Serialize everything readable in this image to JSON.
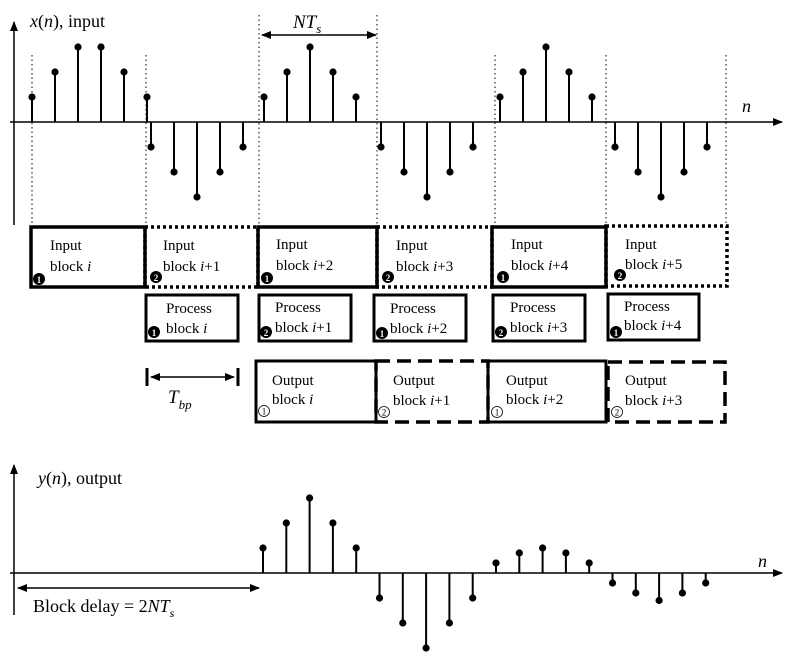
{
  "top_plot": {
    "label_main": "x",
    "label_var": "n",
    "label_suffix": ", input",
    "axis_var": "n",
    "span_label_main": "NT",
    "span_label_sub": "s",
    "samples": [
      [
        1,
        2,
        3,
        3,
        2,
        1
      ],
      [
        -1,
        -2,
        -3,
        -2,
        -1
      ],
      [
        1,
        2,
        3,
        2,
        1
      ],
      [
        -1,
        -2,
        -3,
        -2,
        -1
      ],
      [
        1,
        2,
        3,
        2,
        1
      ],
      [
        -1,
        -2,
        -3,
        -2,
        -1
      ]
    ]
  },
  "input_blocks": [
    {
      "line1": "Input",
      "line2_text": "block ",
      "line2_var": "i",
      "line2_suffix": "",
      "badge": "1"
    },
    {
      "line1": "Input",
      "line2_text": "block ",
      "line2_var": "i",
      "line2_suffix": "+1",
      "badge": "2"
    },
    {
      "line1": "Input",
      "line2_text": "block ",
      "line2_var": "i",
      "line2_suffix": "+2",
      "badge": "1"
    },
    {
      "line1": "Input",
      "line2_text": "block ",
      "line2_var": "i",
      "line2_suffix": "+3",
      "badge": "2"
    },
    {
      "line1": "Input",
      "line2_text": "block ",
      "line2_var": "i",
      "line2_suffix": "+4",
      "badge": "1"
    },
    {
      "line1": "Input",
      "line2_text": "block ",
      "line2_var": "i",
      "line2_suffix": "+5",
      "badge": "2"
    }
  ],
  "process_blocks": [
    {
      "line1": "Process",
      "line2_text": "block ",
      "line2_var": "i",
      "line2_suffix": "",
      "badge": "1"
    },
    {
      "line1": "Process",
      "line2_text": "block ",
      "line2_var": "i",
      "line2_suffix": "+1",
      "badge": "2"
    },
    {
      "line1": "Process",
      "line2_text": "block ",
      "line2_var": "i",
      "line2_suffix": "+2",
      "badge": "1"
    },
    {
      "line1": "Process",
      "line2_text": "block ",
      "line2_var": "i",
      "line2_suffix": "+3",
      "badge": "2"
    },
    {
      "line1": "Process",
      "line2_text": "block ",
      "line2_var": "i",
      "line2_suffix": "+4",
      "badge": "1"
    }
  ],
  "output_blocks": [
    {
      "line1": "Output",
      "line2_text": "block ",
      "line2_var": "i",
      "line2_suffix": "",
      "badge": "1"
    },
    {
      "line1": "Output",
      "line2_text": "block ",
      "line2_var": "i",
      "line2_suffix": "+1",
      "badge": "2"
    },
    {
      "line1": "Output",
      "line2_text": "block ",
      "line2_var": "i",
      "line2_suffix": "+2",
      "badge": "1"
    },
    {
      "line1": "Output",
      "line2_text": "block ",
      "line2_var": "i",
      "line2_suffix": "+3",
      "badge": "2"
    }
  ],
  "tbp_label_main": "T",
  "tbp_label_sub": "bp",
  "bottom_plot": {
    "label_main": "y",
    "label_var": "n",
    "label_suffix": ", output",
    "axis_var": "n",
    "delay_label_text": "Block delay = 2",
    "delay_label_var": "NT",
    "delay_label_sub": "s",
    "samples": [
      1,
      2,
      3,
      2,
      1,
      -1,
      -2,
      -3,
      -2,
      -1,
      0.4,
      0.8,
      1,
      0.8,
      0.4,
      -0.4,
      -0.8,
      -1.1,
      -0.8,
      -0.4
    ]
  }
}
